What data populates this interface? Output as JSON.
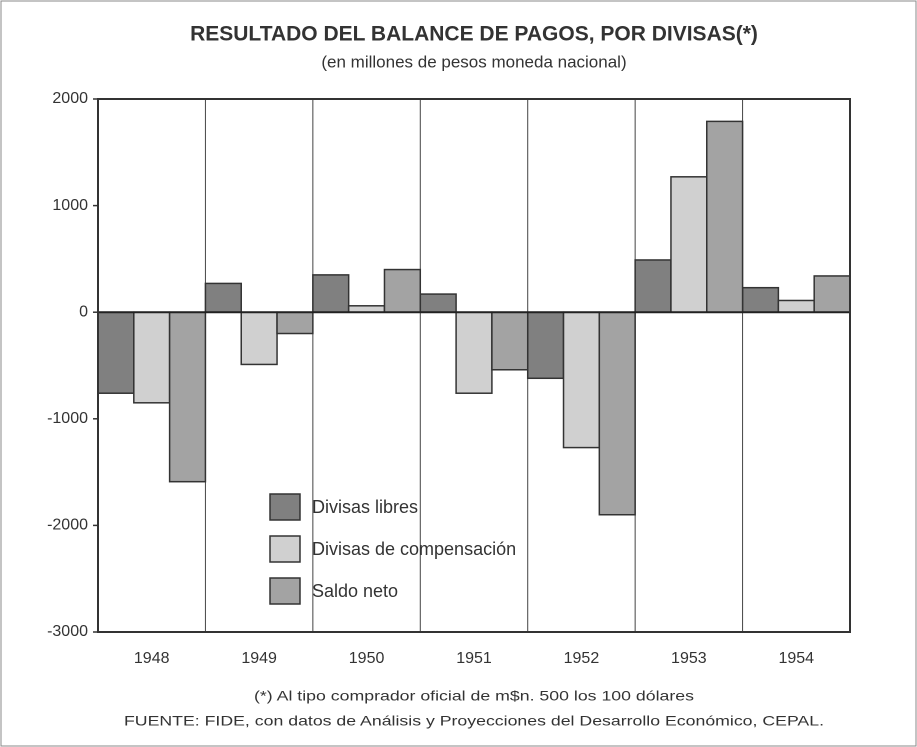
{
  "chart_data": {
    "type": "bar",
    "title": "RESULTADO DEL BALANCE DE PAGOS, POR DIVISAS(*)",
    "subtitle": "(en millones de pesos moneda nacional)",
    "categories": [
      "1948",
      "1949",
      "1950",
      "1951",
      "1952",
      "1953",
      "1954"
    ],
    "series": [
      {
        "name": "Divisas libres",
        "color": "#808080",
        "values": [
          -760,
          270,
          350,
          170,
          -620,
          490,
          230
        ]
      },
      {
        "name": "Divisas de compensación",
        "color": "#d0d0d0",
        "values": [
          -850,
          -490,
          60,
          -760,
          -1270,
          1270,
          110
        ]
      },
      {
        "name": "Saldo neto",
        "color": "#a3a3a3",
        "values": [
          -1590,
          -200,
          400,
          -540,
          -1900,
          1790,
          340
        ]
      }
    ],
    "ylim": [
      -3000,
      2000
    ],
    "yticks": [
      -3000,
      -2000,
      -1000,
      0,
      1000,
      2000
    ],
    "footnote": "(*) Al tipo comprador oficial de m$n. 500 los 100 dólares",
    "source": "FUENTE: FIDE, con datos de Análisis y Proyecciones del Desarrollo Económico, CEPAL."
  }
}
